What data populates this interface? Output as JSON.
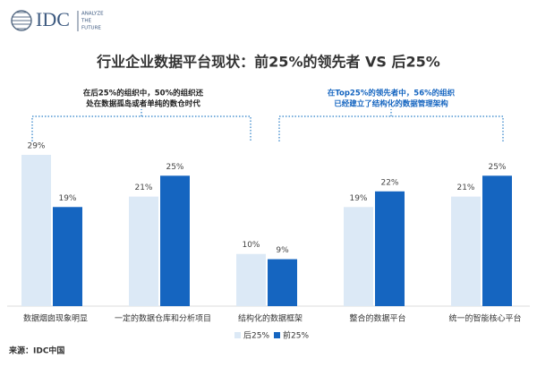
{
  "logo": {
    "name": "IDC",
    "tagline": [
      "ANALYZE",
      "THE",
      "FUTURE"
    ]
  },
  "chart_data": {
    "type": "bar",
    "title": "行业企业数据平台现状：前25%的领先者 VS 后25%",
    "categories": [
      "数据烟囱现象明显",
      "一定的数据仓库和分析项目",
      "结构化的数据框架",
      "整合的数据平台",
      "统一的智能核心平台"
    ],
    "series": [
      {
        "name": "后25%",
        "color": "#dce9f6",
        "values": [
          29,
          21,
          10,
          19,
          21
        ],
        "value_labels": [
          "29%",
          "21%",
          "10%",
          "19%",
          "21%"
        ]
      },
      {
        "name": "前25%",
        "color": "#1565c0",
        "values": [
          19,
          25,
          9,
          22,
          25
        ],
        "value_labels": [
          "19%",
          "25%",
          "9%",
          "22%",
          "25%"
        ]
      }
    ],
    "annotations": [
      {
        "lines": [
          "在后25%的组织中，50%的组织还",
          "处在数据孤岛或者单纯的数仓时代"
        ]
      },
      {
        "lines": [
          "在Top25%的领先者中，56%的组织",
          "已经建立了结构化的数据管理架构"
        ]
      }
    ],
    "legend": "bottom"
  },
  "source": "来源：IDC中国"
}
